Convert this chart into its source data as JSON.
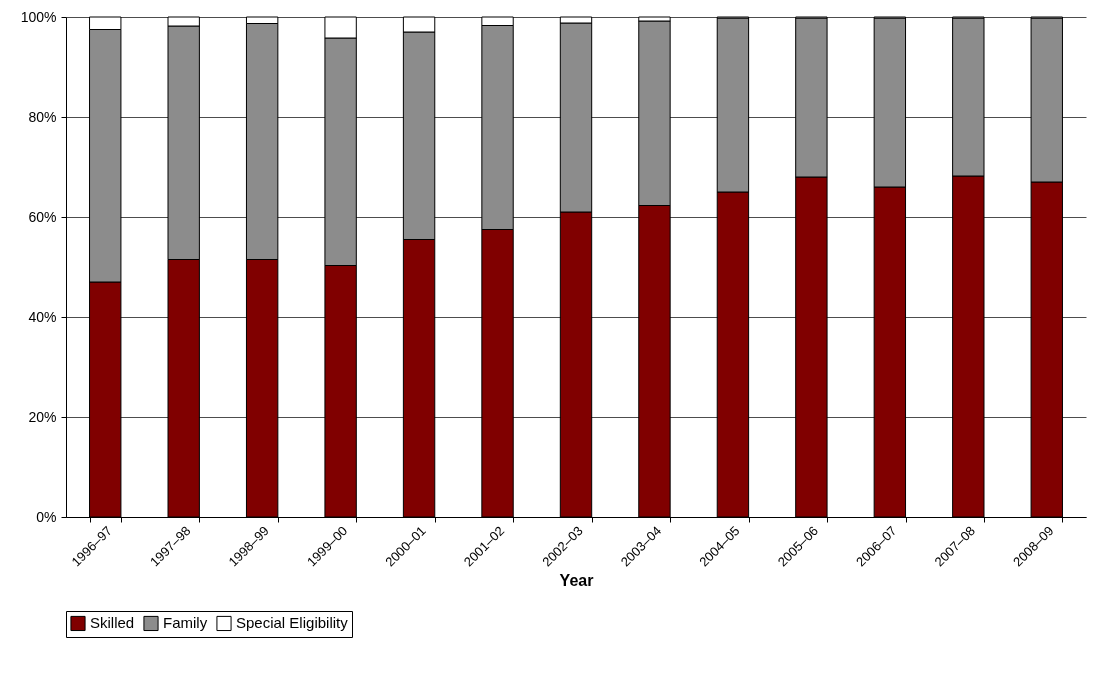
{
  "chart_data": {
    "type": "bar",
    "stacked": true,
    "xlabel": "Year",
    "categories": [
      "1996–97",
      "1997–98",
      "1998–99",
      "1999–00",
      "2000–01",
      "2001–02",
      "2002–03",
      "2003–04",
      "2004–05",
      "2005–06",
      "2006–07",
      "2007–08",
      "2008–09"
    ],
    "series": [
      {
        "name": "Skilled",
        "color": "#800000",
        "values": [
          47,
          51.5,
          51.5,
          50.3,
          55.5,
          57.5,
          61,
          62.3,
          65,
          68,
          66,
          68.2,
          67
        ]
      },
      {
        "name": "Family",
        "color": "#8c8c8c",
        "values": [
          50.5,
          46.7,
          47.2,
          45.5,
          41.5,
          40.8,
          37.8,
          36.9,
          34.8,
          31.8,
          33.8,
          31.6,
          32.8
        ]
      },
      {
        "name": "Special Eligibility",
        "color": "#ffffff",
        "values": [
          2.5,
          1.8,
          1.3,
          4.2,
          3,
          1.7,
          1.2,
          0.8,
          0.2,
          0.2,
          0.2,
          0.2,
          0.2
        ]
      }
    ],
    "ylim": [
      0,
      100
    ],
    "yticks": [
      {
        "value": 0,
        "label": "0%"
      },
      {
        "value": 20,
        "label": "20%"
      },
      {
        "value": 40,
        "label": "40%"
      },
      {
        "value": 60,
        "label": "60%"
      },
      {
        "value": 80,
        "label": "80%"
      },
      {
        "value": 100,
        "label": "100%"
      }
    ],
    "grid": "y",
    "legend": "bottom"
  }
}
